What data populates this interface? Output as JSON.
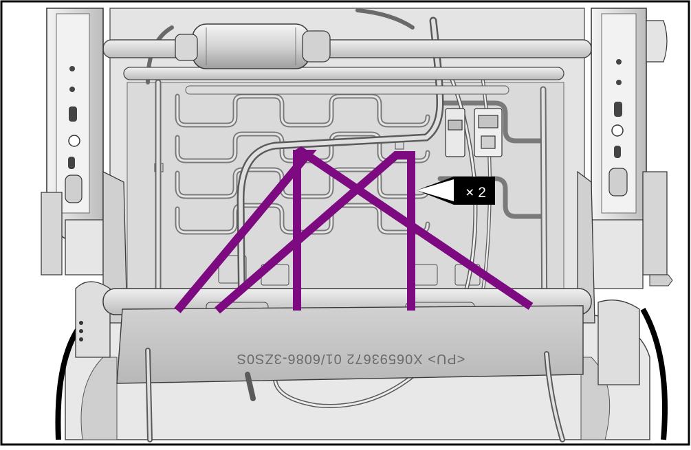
{
  "callout": {
    "quantity": "× 2"
  },
  "colors": {
    "highlight": "#7d0a80",
    "frame": "#000000",
    "metal_light": "#ececec",
    "metal_mid": "#c9c9c9",
    "metal_dark": "#8a8a8a",
    "outline": "#4a4a4a"
  },
  "part_marking": "<PU> X06593672 01/6086-3ZS0S",
  "icons": [
    "arrow-left-icon"
  ]
}
